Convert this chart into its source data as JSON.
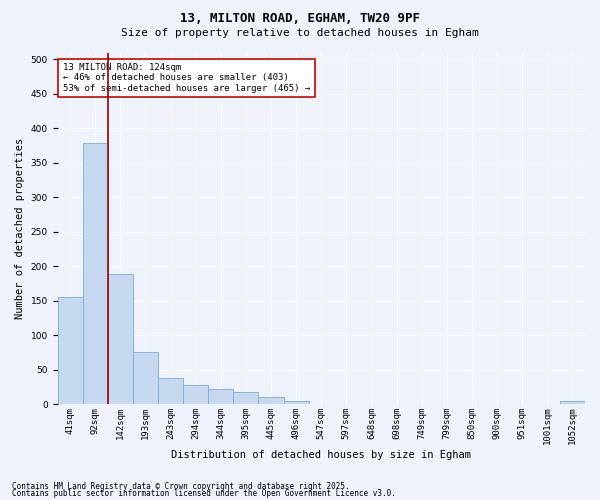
{
  "title_line1": "13, MILTON ROAD, EGHAM, TW20 9PF",
  "title_line2": "Size of property relative to detached houses in Egham",
  "xlabel": "Distribution of detached houses by size in Egham",
  "ylabel": "Number of detached properties",
  "categories": [
    "41sqm",
    "92sqm",
    "142sqm",
    "193sqm",
    "243sqm",
    "294sqm",
    "344sqm",
    "395sqm",
    "445sqm",
    "496sqm",
    "547sqm",
    "597sqm",
    "648sqm",
    "698sqm",
    "749sqm",
    "799sqm",
    "850sqm",
    "900sqm",
    "951sqm",
    "1001sqm",
    "1052sqm"
  ],
  "values": [
    155,
    378,
    188,
    75,
    38,
    27,
    22,
    18,
    10,
    5,
    0,
    0,
    0,
    0,
    0,
    0,
    0,
    0,
    0,
    0,
    5
  ],
  "bar_color": "#c5d8f0",
  "bar_edge_color": "#7bafd4",
  "vline_x_idx": 2,
  "vline_color": "#990000",
  "annotation_text": "13 MILTON ROAD: 124sqm\n← 46% of detached houses are smaller (403)\n53% of semi-detached houses are larger (465) →",
  "annotation_box_facecolor": "#ffffff",
  "annotation_box_edgecolor": "#cc0000",
  "footer_line1": "Contains HM Land Registry data © Crown copyright and database right 2025.",
  "footer_line2": "Contains public sector information licensed under the Open Government Licence v3.0.",
  "ylim": [
    0,
    510
  ],
  "yticks": [
    0,
    50,
    100,
    150,
    200,
    250,
    300,
    350,
    400,
    450,
    500
  ],
  "background_color": "#eef2fb",
  "grid_color": "#ffffff",
  "title_fontsize": 9,
  "subtitle_fontsize": 8,
  "axis_label_fontsize": 7.5,
  "tick_fontsize": 6.5,
  "annotation_fontsize": 6.5,
  "footer_fontsize": 5.5
}
